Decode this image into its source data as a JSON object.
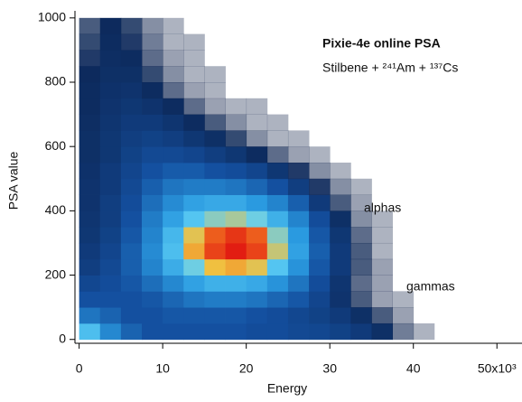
{
  "chart_data": {
    "type": "histogram2d",
    "title": "Pixie-4e online PSA",
    "subtitle": "Stilbene + ²⁴¹Am + ¹³⁷Cs",
    "x_label": "Energy",
    "y_label": "PSA value",
    "annotations": [
      "alphas",
      "gammas"
    ],
    "xlim": [
      -0.5,
      53
    ],
    "ylim": [
      -12,
      1022
    ],
    "xticks": [
      0,
      10,
      20,
      30,
      40,
      {
        "value": 50,
        "label": "50x10³"
      }
    ],
    "yticks": [
      0,
      200,
      400,
      600,
      800,
      1000
    ],
    "xbins": [
      0,
      2.5,
      5,
      7.5,
      10,
      12.5,
      15,
      17.5,
      20,
      22.5,
      25,
      27.5,
      30,
      32.5,
      35,
      37.5,
      40,
      42.5,
      45
    ],
    "ybins": [
      0,
      50,
      100,
      150,
      200,
      250,
      300,
      350,
      400,
      450,
      500,
      550,
      600,
      650,
      700,
      750,
      800,
      850,
      900,
      950,
      1000
    ],
    "counts": [
      [
        60,
        45,
        35,
        30,
        30,
        30,
        30,
        30,
        28,
        28,
        26,
        25,
        22,
        18,
        12,
        4,
        1,
        0
      ],
      [
        40,
        35,
        30,
        30,
        32,
        32,
        32,
        32,
        30,
        28,
        25,
        22,
        18,
        12,
        6,
        2,
        0,
        0
      ],
      [
        30,
        30,
        30,
        32,
        36,
        40,
        42,
        42,
        40,
        36,
        32,
        24,
        14,
        6,
        2,
        1,
        0,
        0
      ],
      [
        25,
        28,
        32,
        38,
        45,
        52,
        56,
        56,
        54,
        48,
        40,
        28,
        15,
        5,
        2,
        0,
        0,
        0
      ],
      [
        20,
        26,
        34,
        44,
        55,
        66,
        75,
        78,
        74,
        62,
        48,
        32,
        18,
        6,
        2,
        0,
        0,
        0
      ],
      [
        18,
        24,
        34,
        46,
        60,
        78,
        92,
        98,
        92,
        72,
        52,
        34,
        18,
        6,
        1,
        0,
        0,
        0
      ],
      [
        16,
        22,
        32,
        44,
        58,
        74,
        88,
        94,
        88,
        68,
        50,
        32,
        16,
        5,
        1,
        0,
        0,
        0
      ],
      [
        15,
        20,
        30,
        42,
        52,
        62,
        68,
        70,
        66,
        56,
        44,
        28,
        12,
        3,
        1,
        0,
        0,
        0
      ],
      [
        14,
        20,
        28,
        38,
        46,
        52,
        54,
        54,
        50,
        44,
        34,
        18,
        6,
        2,
        0,
        0,
        0,
        0
      ],
      [
        14,
        18,
        26,
        34,
        40,
        42,
        42,
        40,
        36,
        30,
        20,
        8,
        3,
        1,
        0,
        0,
        0,
        0
      ],
      [
        13,
        18,
        24,
        30,
        33,
        33,
        30,
        28,
        24,
        16,
        8,
        3,
        1,
        0,
        0,
        0,
        0,
        0
      ],
      [
        12,
        16,
        22,
        26,
        26,
        24,
        20,
        16,
        10,
        5,
        2,
        1,
        0,
        0,
        0,
        0,
        0,
        0
      ],
      [
        12,
        16,
        20,
        22,
        20,
        16,
        12,
        7,
        3,
        1,
        1,
        0,
        0,
        0,
        0,
        0,
        0,
        0
      ],
      [
        11,
        15,
        18,
        18,
        15,
        10,
        6,
        3,
        1,
        1,
        0,
        0,
        0,
        0,
        0,
        0,
        0,
        0
      ],
      [
        10,
        14,
        16,
        14,
        10,
        5,
        2,
        1,
        1,
        0,
        0,
        0,
        0,
        0,
        0,
        0,
        0,
        0
      ],
      [
        10,
        13,
        14,
        10,
        5,
        2,
        1,
        0,
        0,
        0,
        0,
        0,
        0,
        0,
        0,
        0,
        0,
        0
      ],
      [
        9,
        12,
        12,
        7,
        3,
        1,
        1,
        0,
        0,
        0,
        0,
        0,
        0,
        0,
        0,
        0,
        0,
        0
      ],
      [
        8,
        11,
        10,
        5,
        2,
        1,
        0,
        0,
        0,
        0,
        0,
        0,
        0,
        0,
        0,
        0,
        0,
        0
      ],
      [
        7,
        10,
        8,
        4,
        1,
        1,
        0,
        0,
        0,
        0,
        0,
        0,
        0,
        0,
        0,
        0,
        0,
        0
      ],
      [
        6,
        9,
        7,
        3,
        1,
        0,
        0,
        0,
        0,
        0,
        0,
        0,
        0,
        0,
        0,
        0,
        0,
        0
      ]
    ]
  }
}
